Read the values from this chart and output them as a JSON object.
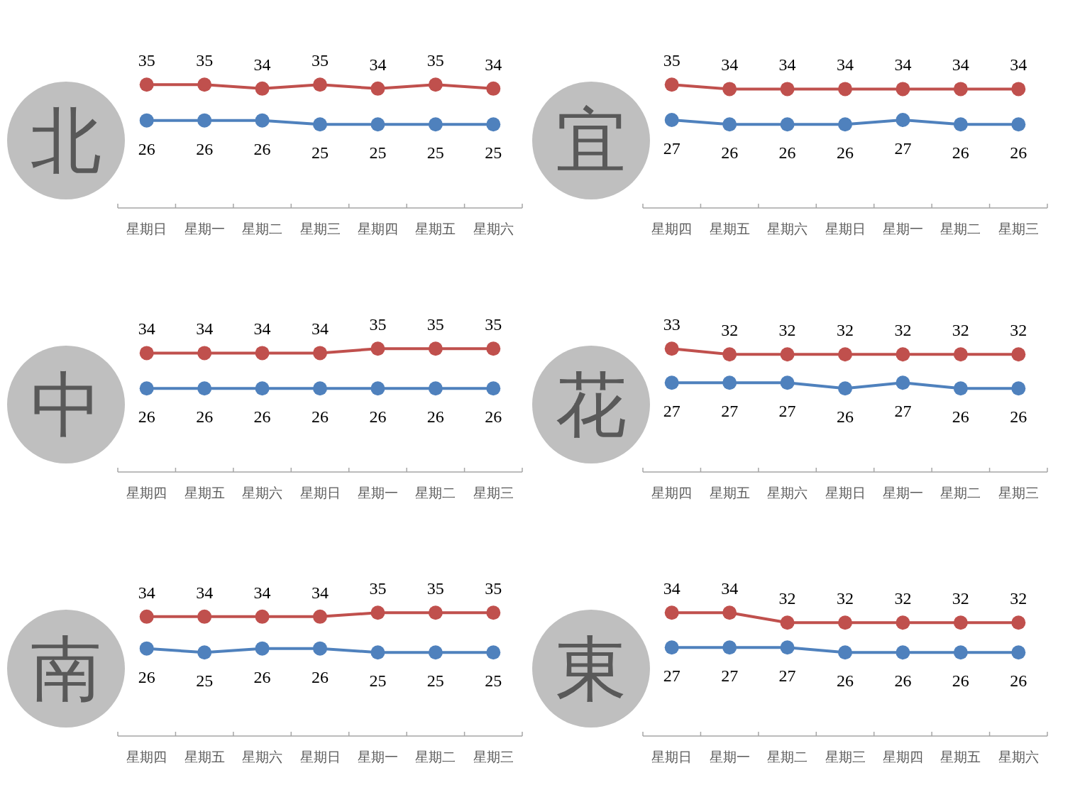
{
  "chart_data": [
    {
      "type": "line",
      "title": "北",
      "categories": [
        "星期日",
        "星期一",
        "星期二",
        "星期三",
        "星期四",
        "星期五",
        "星期六"
      ],
      "data_labels": true,
      "marker": "circle",
      "series": [
        {
          "color": "#c0504d",
          "values": [
            35,
            35,
            34,
            35,
            34,
            35,
            34
          ]
        },
        {
          "color": "#4f81bd",
          "values": [
            26,
            26,
            26,
            25,
            25,
            25,
            25
          ]
        }
      ]
    },
    {
      "type": "line",
      "title": "宜",
      "categories": [
        "星期四",
        "星期五",
        "星期六",
        "星期日",
        "星期一",
        "星期二",
        "星期三"
      ],
      "data_labels": true,
      "marker": "circle",
      "series": [
        {
          "color": "#c0504d",
          "values": [
            35,
            34,
            34,
            34,
            34,
            34,
            34
          ]
        },
        {
          "color": "#4f81bd",
          "values": [
            27,
            26,
            26,
            26,
            27,
            26,
            26
          ]
        }
      ]
    },
    {
      "type": "line",
      "title": "中",
      "categories": [
        "星期四",
        "星期五",
        "星期六",
        "星期日",
        "星期一",
        "星期二",
        "星期三"
      ],
      "data_labels": true,
      "marker": "circle",
      "series": [
        {
          "color": "#c0504d",
          "values": [
            34,
            34,
            34,
            34,
            35,
            35,
            35
          ]
        },
        {
          "color": "#4f81bd",
          "values": [
            26,
            26,
            26,
            26,
            26,
            26,
            26
          ]
        }
      ]
    },
    {
      "type": "line",
      "title": "花",
      "categories": [
        "星期四",
        "星期五",
        "星期六",
        "星期日",
        "星期一",
        "星期二",
        "星期三"
      ],
      "data_labels": true,
      "marker": "circle",
      "series": [
        {
          "color": "#c0504d",
          "values": [
            33,
            32,
            32,
            32,
            32,
            32,
            32
          ]
        },
        {
          "color": "#4f81bd",
          "values": [
            27,
            27,
            27,
            26,
            27,
            26,
            26
          ]
        }
      ]
    },
    {
      "type": "line",
      "title": "南",
      "categories": [
        "星期四",
        "星期五",
        "星期六",
        "星期日",
        "星期一",
        "星期二",
        "星期三"
      ],
      "data_labels": true,
      "marker": "circle",
      "series": [
        {
          "color": "#c0504d",
          "values": [
            34,
            34,
            34,
            34,
            35,
            35,
            35
          ]
        },
        {
          "color": "#4f81bd",
          "values": [
            26,
            25,
            26,
            26,
            25,
            25,
            25
          ]
        }
      ]
    },
    {
      "type": "line",
      "title": "東",
      "categories": [
        "星期日",
        "星期一",
        "星期二",
        "星期三",
        "星期四",
        "星期五",
        "星期六"
      ],
      "data_labels": true,
      "marker": "circle",
      "series": [
        {
          "color": "#c0504d",
          "values": [
            34,
            34,
            32,
            32,
            32,
            32,
            32
          ]
        },
        {
          "color": "#4f81bd",
          "values": [
            27,
            27,
            27,
            26,
            26,
            26,
            26
          ]
        }
      ]
    }
  ]
}
